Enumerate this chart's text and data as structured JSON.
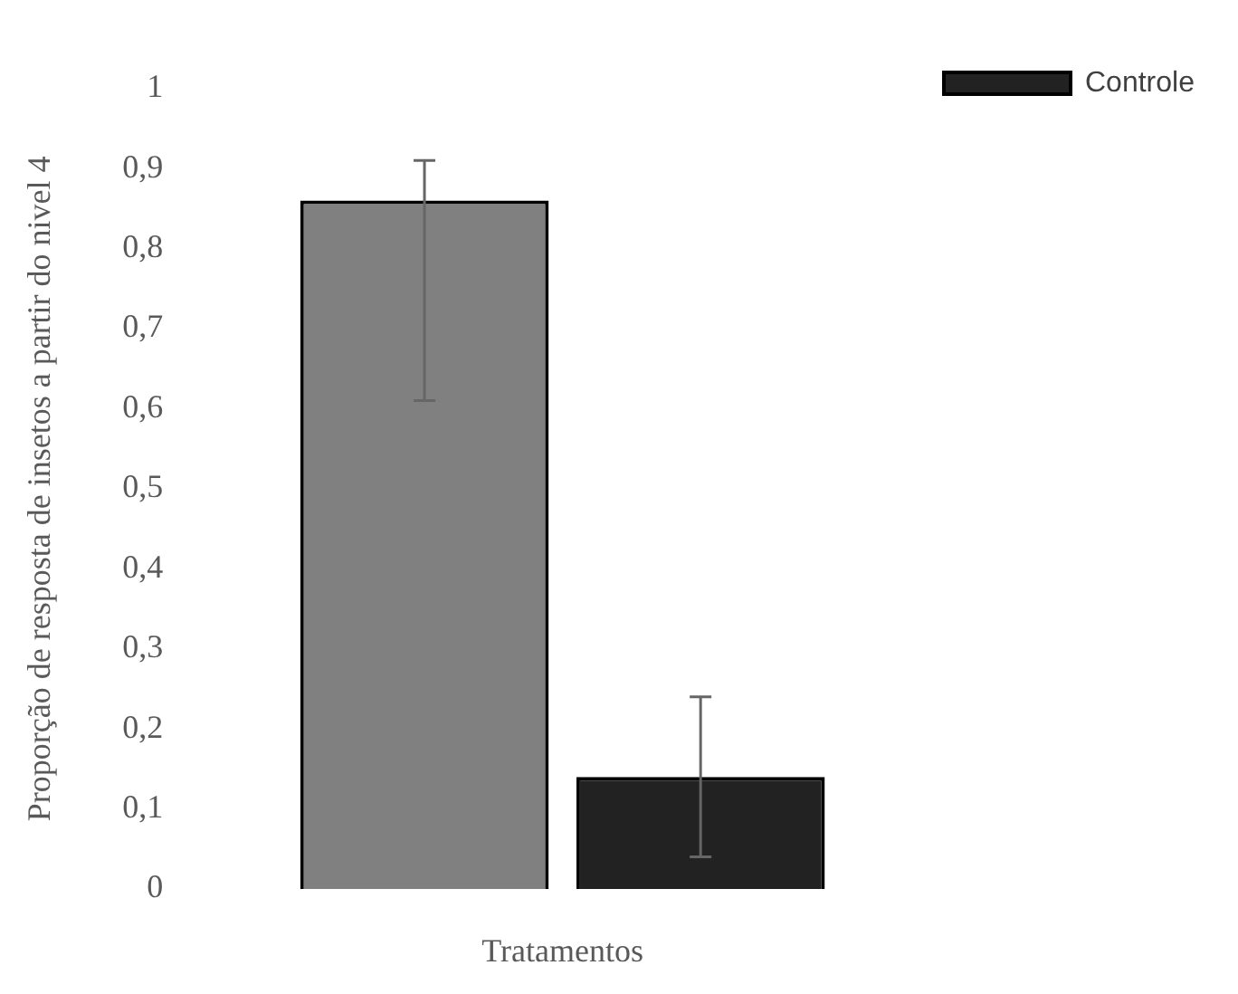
{
  "chart_data": {
    "type": "bar",
    "xlabel": "Tratamentos",
    "ylabel": "Proporção de resposta de insetos a partir do nivel 4",
    "categories": [
      null
    ],
    "series": [
      {
        "color": "#808080",
        "values": [
          0.86
        ],
        "errors": [
          [
            0.61,
            0.91
          ]
        ]
      },
      {
        "name": "Controle",
        "color": "#222222",
        "values": [
          0.14
        ],
        "errors": [
          [
            0.04,
            0.24
          ]
        ]
      }
    ],
    "ylim": [
      0,
      1
    ],
    "yticks": [
      {
        "value": 0,
        "label": "0"
      },
      {
        "value": 0.1,
        "label": "0,1"
      },
      {
        "value": 0.2,
        "label": "0,2"
      },
      {
        "value": 0.3,
        "label": "0,3"
      },
      {
        "value": 0.4,
        "label": "0,4"
      },
      {
        "value": 0.5,
        "label": "0,5"
      },
      {
        "value": 0.6,
        "label": "0,6"
      },
      {
        "value": 0.7,
        "label": "0,7"
      },
      {
        "value": 0.8,
        "label": "0,8"
      },
      {
        "value": 0.9,
        "label": "0,9"
      },
      {
        "value": 1,
        "label": "1"
      }
    ],
    "grid": false,
    "legend": "top right"
  }
}
